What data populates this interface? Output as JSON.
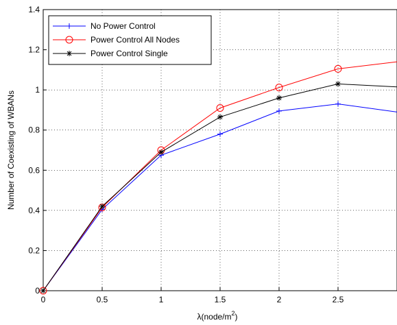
{
  "chart_data": {
    "type": "line",
    "xlabel": "λ(node/m",
    "xlabel_sup": "2",
    "xlabel_suffix": ")",
    "ylabel": "Number of Coexisting of WBANs",
    "xlim": [
      0,
      3
    ],
    "ylim": [
      0,
      1.4
    ],
    "x_ticks": [
      "0",
      "0.5",
      "1",
      "1.5",
      "2",
      "2.5"
    ],
    "x_tick_values": [
      0,
      0.5,
      1,
      1.5,
      2,
      2.5
    ],
    "y_ticks": [
      "0",
      "0.2",
      "0.4",
      "0.6",
      "0.8",
      "1",
      "1.2",
      "1.4"
    ],
    "y_tick_values": [
      0,
      0.2,
      0.4,
      0.6,
      0.8,
      1.0,
      1.2,
      1.4
    ],
    "grid": true,
    "legend_position": "top-left",
    "x": [
      0,
      0.5,
      1,
      1.5,
      2,
      2.5,
      3
    ],
    "series": [
      {
        "name": "No Power Control",
        "values": [
          0,
          0.405,
          0.675,
          0.78,
          0.895,
          0.93,
          0.89
        ],
        "color": "#0000ff",
        "marker": "plus"
      },
      {
        "name": "Power Control All Nodes",
        "values": [
          0,
          0.415,
          0.7,
          0.91,
          1.012,
          1.105,
          1.14
        ],
        "color": "#ff0000",
        "marker": "circle"
      },
      {
        "name": "Power Control Single",
        "values": [
          0,
          0.42,
          0.69,
          0.865,
          0.96,
          1.03,
          1.015
        ],
        "color": "#000000",
        "marker": "star"
      }
    ]
  }
}
